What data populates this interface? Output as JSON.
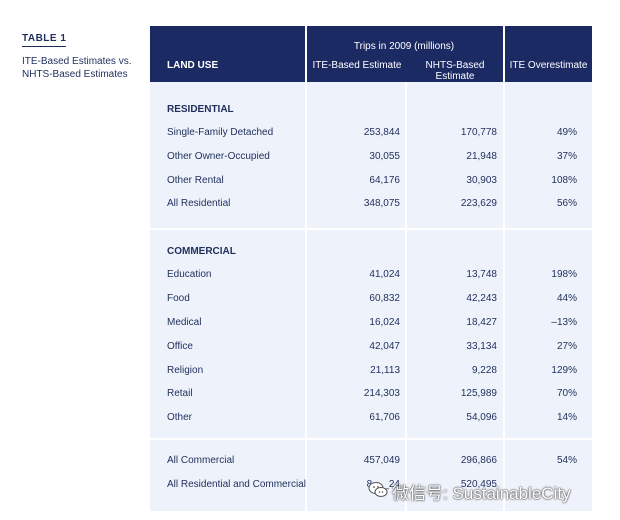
{
  "caption": {
    "label": "TABLE 1",
    "title_line1": "ITE-Based Estimates vs.",
    "title_line2": "NHTS-Based Estimates"
  },
  "header": {
    "land_use": "LAND USE",
    "group": "Trips in 2009 (millions)",
    "ite": "ITE-Based Estimate",
    "nhts": "NHTS-Based Estimate",
    "overestimate": "ITE  Overestimate"
  },
  "residential": {
    "title": "RESIDENTIAL",
    "rows": [
      {
        "label": "Single-Family Detached",
        "ite": "253,844",
        "nhts": "170,778",
        "over": "49%"
      },
      {
        "label": "Other Owner-Occupied",
        "ite": "30,055",
        "nhts": "21,948",
        "over": "37%"
      },
      {
        "label": "Other Rental",
        "ite": "64,176",
        "nhts": "30,903",
        "over": "108%"
      },
      {
        "label": "All Residential",
        "ite": "348,075",
        "nhts": "223,629",
        "over": "56%"
      }
    ]
  },
  "commercial": {
    "title": "COMMERCIAL",
    "rows": [
      {
        "label": "Education",
        "ite": "41,024",
        "nhts": "13,748",
        "over": "198%"
      },
      {
        "label": "Food",
        "ite": "60,832",
        "nhts": "42,243",
        "over": "44%"
      },
      {
        "label": "Medical",
        "ite": "16,024",
        "nhts": "18,427",
        "over": "–13%"
      },
      {
        "label": "Office",
        "ite": "42,047",
        "nhts": "33,134",
        "over": "27%"
      },
      {
        "label": "Religion",
        "ite": "21,113",
        "nhts": "9,228",
        "over": "129%"
      },
      {
        "label": "Retail",
        "ite": "214,303",
        "nhts": "125,989",
        "over": "70%"
      },
      {
        "label": "Other",
        "ite": "61,706",
        "nhts": "54,096",
        "over": "14%"
      }
    ]
  },
  "totals": {
    "rows": [
      {
        "label": "All Commercial",
        "ite": "457,049",
        "nhts": "296,866",
        "over": "54%"
      },
      {
        "label": "All Residential and Commercial",
        "ite": "8___24",
        "nhts": "520,495",
        "over": ""
      }
    ]
  },
  "watermark": {
    "text": "微信号: SustainableCity",
    "icon": "wechat-icon"
  }
}
